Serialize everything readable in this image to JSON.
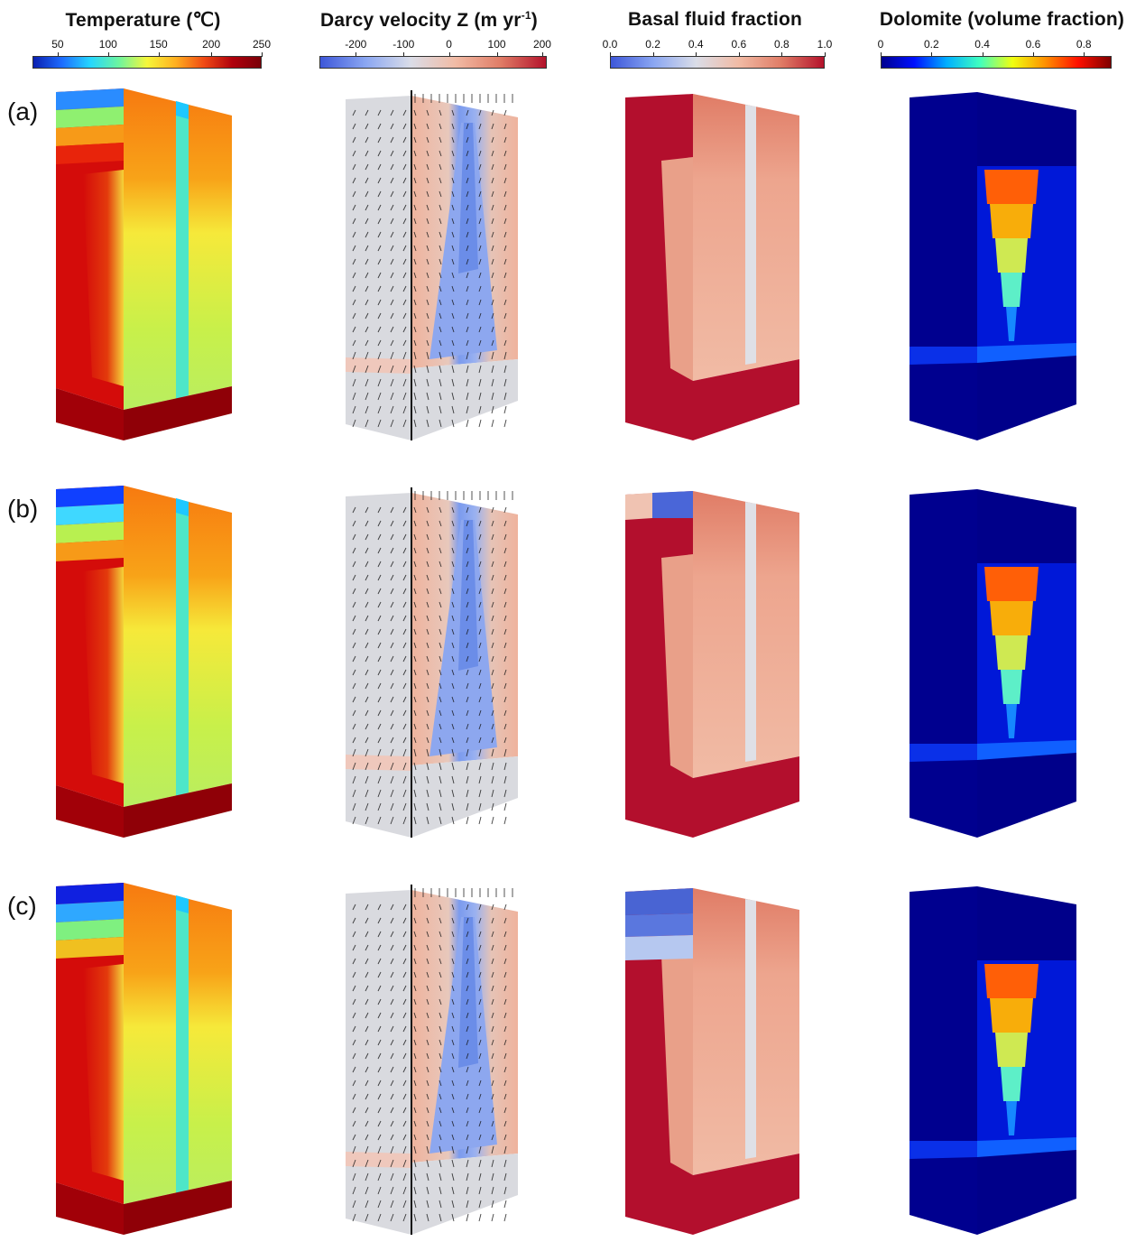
{
  "columns": [
    {
      "title": "Temperature (℃)",
      "title_sup": "",
      "ticks": [
        "50",
        "100",
        "150",
        "200",
        "250"
      ],
      "colormap": "jet-red",
      "gradient": [
        "#0a1fb0",
        "#1e6cff",
        "#25d6ff",
        "#6cf5a0",
        "#f6f73a",
        "#ffb020",
        "#f04a14",
        "#b0000c",
        "#7a0008"
      ]
    },
    {
      "title": "Darcy velocity Z (m yr",
      "title_sup": "-1",
      "title_end": ")",
      "ticks": [
        "-200",
        "-100",
        "0",
        "100",
        "200"
      ],
      "colormap": "cool-warm",
      "gradient": [
        "#3d57d9",
        "#8aa6f2",
        "#dadde8",
        "#f1bba5",
        "#e07c66",
        "#b4122b"
      ]
    },
    {
      "title": "Basal fluid fraction",
      "title_sup": "",
      "ticks": [
        "0.0",
        "0.2",
        "0.4",
        "0.6",
        "0.8",
        "1.0"
      ],
      "colormap": "cool-warm",
      "gradient": [
        "#3d57d9",
        "#8aa6f2",
        "#dadde8",
        "#f1bba5",
        "#e07c66",
        "#b4122b"
      ]
    },
    {
      "title": "Dolomite (volume fraction)",
      "title_sup": "",
      "ticks": [
        "0",
        "0.2",
        "0.4",
        "0.6",
        "0.8"
      ],
      "colormap": "jet",
      "gradient": [
        "#00008f",
        "#0010ff",
        "#00b0ff",
        "#40ffbf",
        "#f0ff10",
        "#ff9000",
        "#ff1000",
        "#800000"
      ]
    }
  ],
  "rows": [
    {
      "label": "(a)"
    },
    {
      "label": "(b)"
    },
    {
      "label": "(c)"
    }
  ],
  "colors": {
    "temp_base": "#8f0007",
    "temp_side": "#d40c0a",
    "temp_hot": "#e8240b",
    "temp_warm": "#f77a10",
    "temp_mid": "#f6e93a",
    "temp_cool": "#7ff08a",
    "temp_cold": "#3ab8ff",
    "vel_neutral": "#d9dadf",
    "vel_pos": "#efb39d",
    "vel_neg": "#7b9bee",
    "fluid_high": "#b30f2d",
    "fluid_mid": "#eeaa94",
    "fluid_light": "#dfe0e6",
    "fluid_low": "#4a66d8",
    "dolo_bg": "#00008f",
    "dolo_band": "#0b45ff",
    "dolo_hi": "#ff3c0a"
  }
}
